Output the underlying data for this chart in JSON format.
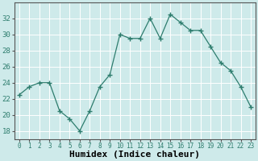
{
  "x": [
    0,
    1,
    2,
    3,
    4,
    5,
    6,
    7,
    8,
    9,
    10,
    11,
    12,
    13,
    14,
    15,
    16,
    17,
    18,
    19,
    20,
    21,
    22,
    23
  ],
  "y": [
    22.5,
    23.5,
    24.0,
    24.0,
    20.5,
    19.5,
    18.0,
    20.5,
    23.5,
    25.0,
    30.0,
    29.5,
    29.5,
    32.0,
    29.5,
    32.5,
    31.5,
    30.5,
    30.5,
    28.5,
    26.5,
    25.5,
    23.5,
    21.0
  ],
  "xlabel": "Humidex (Indice chaleur)",
  "xlim": [
    -0.5,
    23.5
  ],
  "ylim": [
    17,
    34
  ],
  "yticks": [
    18,
    20,
    22,
    24,
    26,
    28,
    30,
    32
  ],
  "line_color": "#2e7d6e",
  "marker_color": "#2e7d6e",
  "bg_color": "#ceeaea",
  "grid_color": "#b0d8d8",
  "axis_color": "#555555"
}
